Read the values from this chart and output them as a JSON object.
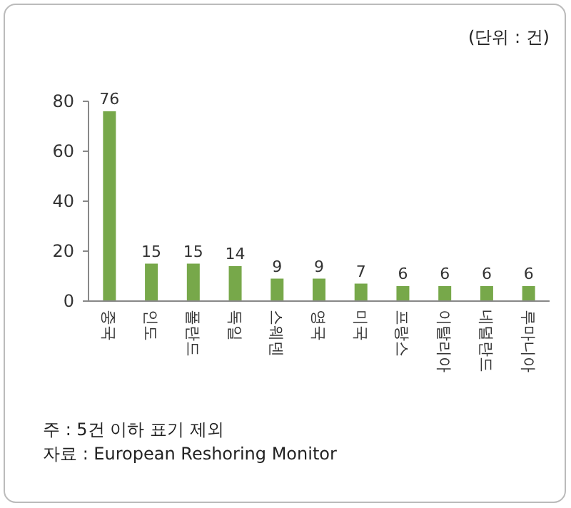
{
  "chart_data": {
    "type": "bar",
    "categories": [
      "중국",
      "인도",
      "폴란드",
      "독일",
      "스웨덴",
      "영국",
      "미국",
      "프랑스",
      "이탈리아",
      "네덜란드",
      "루마니아"
    ],
    "values": [
      76,
      15,
      15,
      14,
      9,
      9,
      7,
      6,
      6,
      6,
      6
    ],
    "color": "#77a84a",
    "ylim": [
      0,
      80
    ],
    "yticks": [
      0,
      20,
      40,
      60,
      80
    ],
    "data_labels": true,
    "annotations": [
      "(단위 : 건)",
      "주 : 5건 이하 표기 제외",
      "자료 : European Reshoring Monitor"
    ]
  }
}
